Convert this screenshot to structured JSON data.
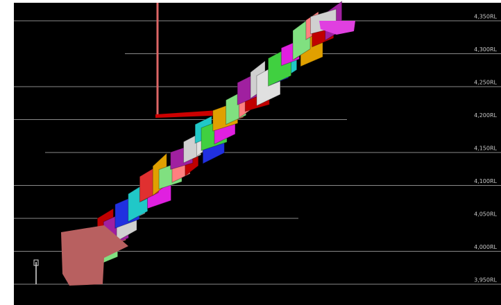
{
  "levels": [
    "4,350RL",
    "4,300RL",
    "4,250RL",
    "4,200RL",
    "4,150RL",
    "4,100RL",
    "4,050RL",
    "4,000RL",
    "3,950RL"
  ]
}
